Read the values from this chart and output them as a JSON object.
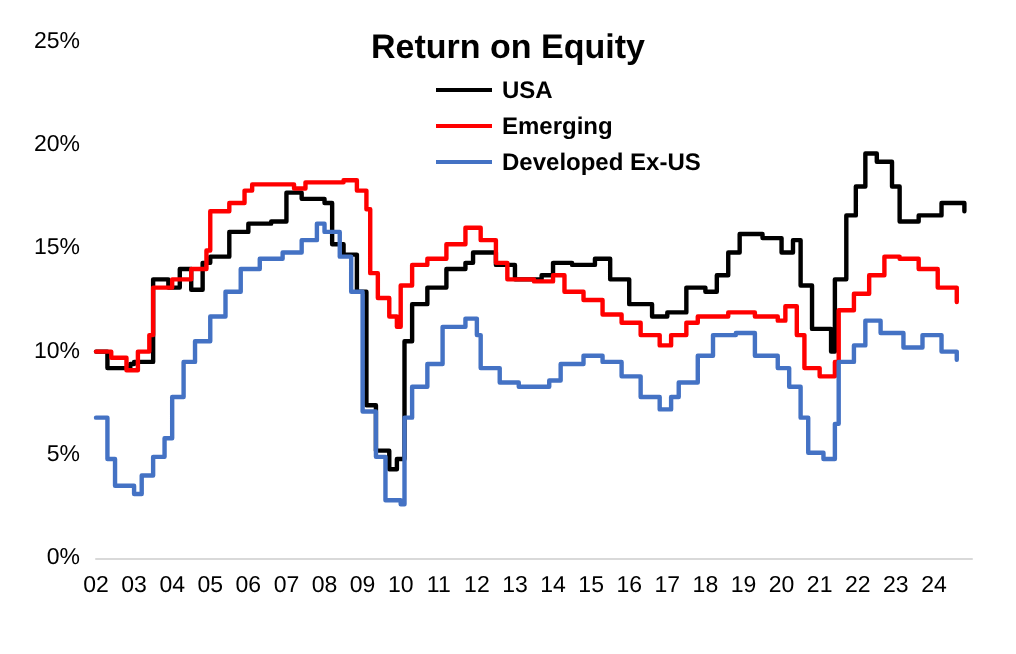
{
  "chart_data": {
    "type": "step",
    "title": "Return on Equity",
    "xlim": [
      2002,
      2025
    ],
    "ylim": [
      0,
      25
    ],
    "xticks": [
      {
        "value": 2002,
        "label": "02"
      },
      {
        "value": 2003,
        "label": "03"
      },
      {
        "value": 2004,
        "label": "04"
      },
      {
        "value": 2005,
        "label": "05"
      },
      {
        "value": 2006,
        "label": "06"
      },
      {
        "value": 2007,
        "label": "07"
      },
      {
        "value": 2008,
        "label": "08"
      },
      {
        "value": 2009,
        "label": "09"
      },
      {
        "value": 2010,
        "label": "10"
      },
      {
        "value": 2011,
        "label": "11"
      },
      {
        "value": 2012,
        "label": "12"
      },
      {
        "value": 2013,
        "label": "13"
      },
      {
        "value": 2014,
        "label": "14"
      },
      {
        "value": 2015,
        "label": "15"
      },
      {
        "value": 2016,
        "label": "16"
      },
      {
        "value": 2017,
        "label": "17"
      },
      {
        "value": 2018,
        "label": "18"
      },
      {
        "value": 2019,
        "label": "19"
      },
      {
        "value": 2020,
        "label": "20"
      },
      {
        "value": 2021,
        "label": "21"
      },
      {
        "value": 2022,
        "label": "22"
      },
      {
        "value": 2023,
        "label": "23"
      },
      {
        "value": 2024,
        "label": "24"
      }
    ],
    "yticks": [
      {
        "value": 0,
        "label": "0%"
      },
      {
        "value": 5,
        "label": "5%"
      },
      {
        "value": 10,
        "label": "10%"
      },
      {
        "value": 15,
        "label": "15%"
      },
      {
        "value": 20,
        "label": "20%"
      },
      {
        "value": 25,
        "label": "25%"
      }
    ],
    "grid": false,
    "legend": "top",
    "marker": "none",
    "line_style": "solid",
    "series": [
      {
        "name": "USA",
        "color": "#000000",
        "x": [
          2002.0,
          2002.3,
          2002.9,
          2003.0,
          2003.5,
          2003.9,
          2004.2,
          2004.5,
          2004.8,
          2005.0,
          2005.5,
          2006.0,
          2006.6,
          2007.0,
          2007.4,
          2008.0,
          2008.2,
          2008.5,
          2008.85,
          2009.1,
          2009.35,
          2009.7,
          2009.9,
          2010.1,
          2010.3,
          2010.7,
          2011.2,
          2011.7,
          2011.9,
          2012.5,
          2013.0,
          2013.7,
          2014.0,
          2014.5,
          2015.1,
          2015.5,
          2016.0,
          2016.6,
          2017.0,
          2017.5,
          2018.0,
          2018.3,
          2018.6,
          2018.9,
          2019.5,
          2020.0,
          2020.3,
          2020.5,
          2020.8,
          2021.3,
          2021.4,
          2021.7,
          2021.95,
          2022.2,
          2022.5,
          2022.9,
          2023.1,
          2023.6,
          2024.2,
          2024.8
        ],
        "values": [
          10.0,
          9.2,
          9.4,
          9.5,
          13.5,
          13.1,
          14.0,
          13.0,
          14.3,
          14.6,
          15.8,
          16.2,
          16.3,
          17.7,
          17.4,
          17.2,
          15.2,
          14.7,
          12.9,
          7.4,
          5.2,
          4.3,
          4.8,
          10.5,
          12.3,
          13.1,
          14.0,
          14.3,
          14.8,
          14.2,
          13.5,
          13.7,
          14.3,
          14.2,
          14.5,
          13.5,
          12.3,
          11.7,
          11.9,
          13.1,
          12.9,
          13.7,
          14.8,
          15.7,
          15.5,
          14.8,
          15.4,
          13.2,
          11.1,
          10.0,
          13.5,
          16.6,
          18.0,
          19.6,
          19.2,
          18.0,
          16.3,
          16.6,
          17.2,
          16.8
        ]
      },
      {
        "name": "Emerging",
        "color": "#ff0000",
        "x": [
          2002.0,
          2002.4,
          2002.8,
          2003.0,
          2003.1,
          2003.4,
          2003.5,
          2004.0,
          2004.5,
          2004.9,
          2005.0,
          2005.5,
          2005.9,
          2006.1,
          2006.7,
          2007.2,
          2007.5,
          2008.0,
          2008.5,
          2008.85,
          2009.1,
          2009.2,
          2009.4,
          2009.7,
          2009.9,
          2010.0,
          2010.3,
          2010.7,
          2011.2,
          2011.7,
          2012.1,
          2012.5,
          2012.8,
          2013.5,
          2014.0,
          2014.3,
          2014.8,
          2015.3,
          2015.8,
          2016.3,
          2016.8,
          2017.1,
          2017.5,
          2017.8,
          2018.6,
          2019.3,
          2019.9,
          2020.1,
          2020.4,
          2020.6,
          2021.0,
          2021.4,
          2021.5,
          2021.9,
          2022.3,
          2022.7,
          2023.1,
          2023.6,
          2024.1,
          2024.6
        ],
        "values": [
          10.0,
          9.7,
          9.1,
          9.1,
          10.0,
          10.8,
          13.1,
          13.5,
          14.0,
          14.9,
          16.8,
          17.2,
          17.8,
          18.1,
          18.1,
          17.9,
          18.2,
          18.2,
          18.3,
          17.8,
          16.9,
          13.8,
          12.6,
          11.7,
          11.2,
          13.2,
          14.2,
          14.5,
          15.2,
          16.0,
          15.4,
          14.3,
          13.5,
          13.4,
          13.7,
          12.9,
          12.5,
          11.8,
          11.4,
          10.8,
          10.3,
          10.8,
          11.4,
          11.7,
          11.9,
          11.7,
          11.5,
          12.2,
          10.8,
          9.2,
          8.8,
          9.5,
          12.0,
          12.8,
          13.7,
          14.6,
          14.5,
          14.0,
          13.1,
          12.4
        ]
      },
      {
        "name": "Developed Ex-US",
        "color": "#4472c4",
        "x": [
          2002.0,
          2002.3,
          2002.5,
          2003.0,
          2003.2,
          2003.5,
          2003.8,
          2004.0,
          2004.3,
          2004.6,
          2005.0,
          2005.4,
          2005.8,
          2006.3,
          2006.9,
          2007.4,
          2007.8,
          2008.0,
          2008.4,
          2008.7,
          2009.0,
          2009.35,
          2009.6,
          2010.0,
          2010.1,
          2010.3,
          2010.7,
          2011.1,
          2011.7,
          2012.0,
          2012.1,
          2012.6,
          2013.1,
          2013.9,
          2014.2,
          2014.8,
          2015.3,
          2015.8,
          2016.3,
          2016.8,
          2017.1,
          2017.3,
          2017.8,
          2018.2,
          2018.8,
          2019.3,
          2019.9,
          2020.2,
          2020.5,
          2020.7,
          2021.1,
          2021.4,
          2021.5,
          2021.9,
          2022.2,
          2022.6,
          2023.2,
          2023.7,
          2024.2,
          2024.6
        ],
        "values": [
          6.8,
          4.8,
          3.5,
          3.1,
          4.0,
          4.9,
          5.8,
          7.8,
          9.5,
          10.5,
          11.7,
          12.9,
          14.0,
          14.5,
          14.8,
          15.4,
          16.2,
          15.8,
          14.6,
          12.9,
          7.1,
          4.9,
          2.8,
          2.6,
          6.8,
          8.3,
          9.4,
          11.2,
          11.6,
          10.8,
          9.2,
          8.5,
          8.3,
          8.6,
          9.4,
          9.8,
          9.5,
          8.8,
          7.8,
          7.2,
          7.8,
          8.5,
          9.8,
          10.8,
          10.9,
          9.8,
          9.2,
          8.3,
          6.8,
          5.1,
          4.8,
          6.5,
          9.5,
          10.3,
          11.5,
          10.9,
          10.2,
          10.8,
          10.0,
          9.6
        ]
      }
    ]
  }
}
